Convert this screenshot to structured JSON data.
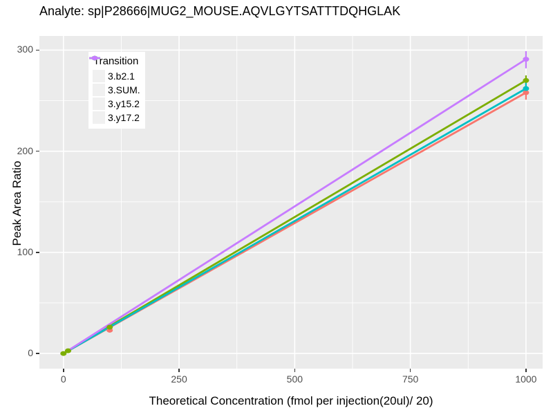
{
  "chart_data": {
    "type": "line",
    "title": "Analyte: sp|P28666|MUG2_MOUSE.AQVLGYTSATTTDQHGLAK",
    "xlabel": "Theoretical Concentration (fmol per injection(20ul)/ 20)",
    "ylabel": "Peak Area Ratio",
    "legend_title": "Transition",
    "legend_position": "top-left-inside",
    "panel_bg": "#ebebeb",
    "grid_color": "#ffffff",
    "tick_color": "#333333",
    "x_ticks": [
      0,
      250,
      500,
      750,
      1000
    ],
    "x_minor_ticks": [
      125,
      375,
      625,
      875
    ],
    "y_ticks": [
      0,
      100,
      200,
      300
    ],
    "y_minor_ticks": [
      50,
      150,
      250
    ],
    "xlim": [
      -52,
      1036
    ],
    "ylim": [
      -15,
      314
    ],
    "grid": true,
    "series": [
      {
        "name": "3.b2.1",
        "color": "#F8766D",
        "line": {
          "x": [
            0,
            1000
          ],
          "y": [
            0,
            258
          ]
        },
        "points": [
          {
            "x": 100,
            "y": 23
          },
          {
            "x": 1000,
            "y": 258
          }
        ],
        "error_bars": [
          {
            "x": 1000,
            "lo": 251,
            "hi": 263
          }
        ]
      },
      {
        "name": "3.SUM.",
        "color": "#7CAE00",
        "line": {
          "x": [
            0,
            1000
          ],
          "y": [
            0,
            270
          ]
        },
        "points": [
          {
            "x": 0,
            "y": 0
          },
          {
            "x": 10,
            "y": 2.7
          },
          {
            "x": 100,
            "y": 26
          },
          {
            "x": 1000,
            "y": 270
          }
        ],
        "error_bars": [
          {
            "x": 1000,
            "lo": 263,
            "hi": 275
          }
        ]
      },
      {
        "name": "3.y15.2",
        "color": "#00BFC4",
        "line": {
          "x": [
            0,
            1000
          ],
          "y": [
            0,
            262
          ]
        },
        "points": [
          {
            "x": 1000,
            "y": 262
          }
        ],
        "error_bars": [
          {
            "x": 1000,
            "lo": 256,
            "hi": 268
          }
        ]
      },
      {
        "name": "3.y17.2",
        "color": "#C77CFF",
        "line": {
          "x": [
            0,
            1000
          ],
          "y": [
            0,
            291
          ]
        },
        "points": [
          {
            "x": 1000,
            "y": 291
          }
        ],
        "error_bars": [
          {
            "x": 1000,
            "lo": 282,
            "hi": 299
          }
        ]
      }
    ]
  }
}
